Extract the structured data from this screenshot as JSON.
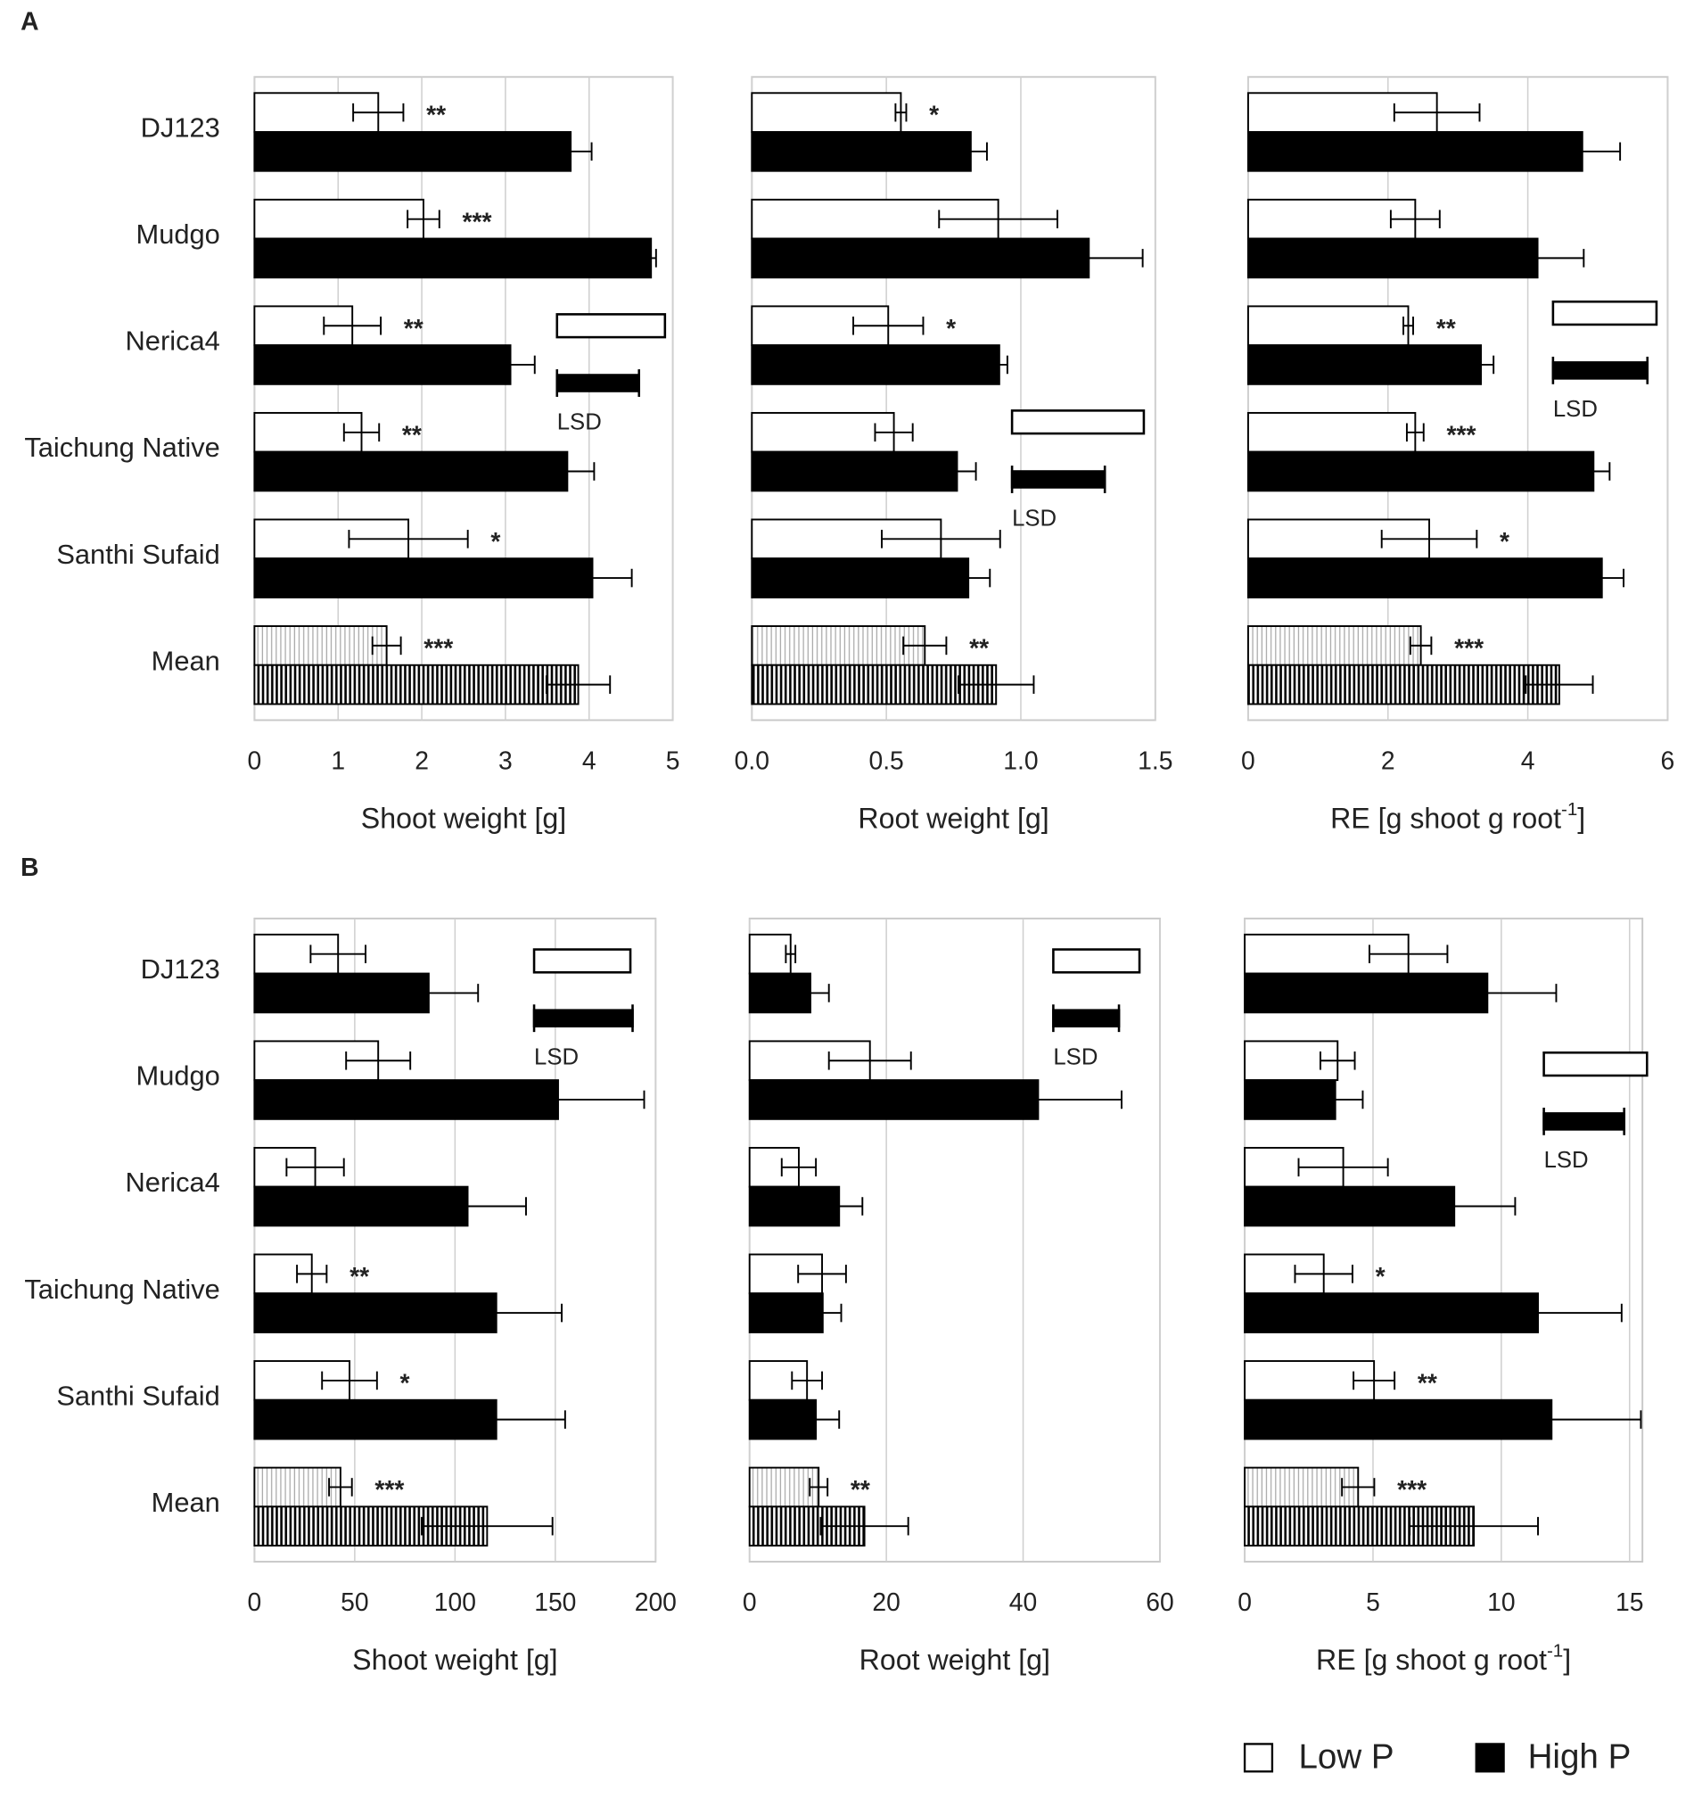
{
  "panel_labels": [
    "A",
    "B"
  ],
  "legend": [
    {
      "name": "Low P",
      "color": "#ffffff"
    },
    {
      "name": "High P",
      "color": "#000000"
    }
  ],
  "chart_data": [
    {
      "type": "bar",
      "orientation": "horizontal",
      "categories": [
        "DJ123",
        "Mudgo",
        "Nerica4",
        "Taichung Native",
        "Santhi Sufaid",
        "Mean"
      ],
      "x_label": {
        "text": "Shoot weight  [g]"
      },
      "xlim": [
        0,
        5
      ],
      "xticks": [
        0,
        1,
        2,
        3,
        4,
        5
      ],
      "grid": true,
      "series": [
        {
          "color": "#ffffff",
          "values": [
            1.48,
            2.02,
            1.17,
            1.28,
            1.84,
            1.58
          ],
          "errors": [
            0.3,
            0.19,
            0.34,
            0.21,
            0.71,
            0.17
          ],
          "annotations": [
            "**",
            "***",
            "**",
            "**",
            "*",
            "***"
          ]
        },
        {
          "color": "#000000",
          "values": [
            3.78,
            4.74,
            3.06,
            3.74,
            4.04,
            3.87
          ],
          "errors": [
            0.25,
            0.06,
            0.29,
            0.32,
            0.47,
            0.38
          ]
        }
      ],
      "lsd": {
        "label": "LSD",
        "values": [
          1.29,
          0.98
        ]
      }
    },
    {
      "type": "bar",
      "orientation": "horizontal",
      "x_label": {
        "text": "Root weight  [g]"
      },
      "xlim": [
        0,
        1.5
      ],
      "xticks": [
        {
          "value": 0,
          "label": "0.0"
        },
        0.5,
        {
          "value": 1,
          "label": "1.0"
        },
        1.5
      ],
      "grid": true,
      "series": [
        {
          "color": "#ffffff",
          "values": [
            0.554,
            0.916,
            0.507,
            0.528,
            0.703,
            0.643
          ],
          "errors": [
            0.02,
            0.22,
            0.13,
            0.07,
            0.22,
            0.08
          ],
          "annotations": [
            "*",
            null,
            "*",
            null,
            null,
            "**"
          ]
        },
        {
          "color": "#000000",
          "values": [
            0.814,
            1.253,
            0.92,
            0.763,
            0.805,
            0.908
          ],
          "errors": [
            0.06,
            0.2,
            0.03,
            0.07,
            0.08,
            0.14
          ]
        }
      ],
      "lsd": {
        "label": "LSD",
        "values": [
          0.49,
          0.345
        ]
      }
    },
    {
      "type": "bar",
      "orientation": "horizontal",
      "x_label": {
        "text": "RE [g shoot g root",
        "sup": "-1",
        "tail": "]"
      },
      "xlim": [
        0,
        6
      ],
      "xticks": [
        0,
        2,
        4,
        6
      ],
      "grid": true,
      "series": [
        {
          "color": "#ffffff",
          "values": [
            2.7,
            2.39,
            2.29,
            2.39,
            2.59,
            2.47
          ],
          "errors": [
            0.61,
            0.35,
            0.07,
            0.12,
            0.68,
            0.15
          ],
          "annotations": [
            null,
            null,
            "**",
            "***",
            "*",
            "***"
          ]
        },
        {
          "color": "#000000",
          "values": [
            4.78,
            4.14,
            3.33,
            4.94,
            5.06,
            4.45
          ],
          "errors": [
            0.54,
            0.66,
            0.18,
            0.23,
            0.31,
            0.48
          ]
        }
      ],
      "lsd": {
        "label": "LSD",
        "values": [
          1.48,
          1.35
        ]
      }
    },
    {
      "type": "bar",
      "orientation": "horizontal",
      "categories": [
        "DJ123",
        "Mudgo",
        "Nerica4",
        "Taichung Native",
        "Santhi Sufaid",
        "Mean"
      ],
      "x_label": {
        "text": "Shoot weight  [g]"
      },
      "xlim": [
        0,
        200
      ],
      "xticks": [
        0,
        50,
        100,
        150,
        200
      ],
      "grid": true,
      "series": [
        {
          "color": "#ffffff",
          "values": [
            41.7,
            61.7,
            30.3,
            28.6,
            47.4,
            42.9
          ],
          "errors": [
            13.7,
            16,
            14.3,
            7.4,
            13.7,
            5.7
          ],
          "annotations": [
            null,
            null,
            null,
            "**",
            "*",
            "***"
          ]
        },
        {
          "color": "#000000",
          "values": [
            86.9,
            151.4,
            106.3,
            120.6,
            120.6,
            116
          ],
          "errors": [
            24.6,
            42.9,
            29.1,
            32.6,
            34.3,
            32.6
          ]
        }
      ],
      "lsd": {
        "label": "LSD",
        "values": [
          48,
          49.1
        ]
      }
    },
    {
      "type": "bar",
      "orientation": "horizontal",
      "x_label": {
        "text": "Root weight  [g]"
      },
      "xlim": [
        0,
        60
      ],
      "xticks": [
        0,
        20,
        40,
        60
      ],
      "grid": true,
      "series": [
        {
          "color": "#ffffff",
          "values": [
            6.0,
            17.6,
            7.2,
            10.6,
            8.4,
            10.1
          ],
          "errors": [
            0.7,
            6.0,
            2.5,
            3.5,
            2.2,
            1.3
          ],
          "annotations": [
            null,
            null,
            null,
            null,
            null,
            "**"
          ]
        },
        {
          "color": "#000000",
          "values": [
            8.9,
            42.2,
            13.1,
            10.7,
            9.7,
            16.8
          ],
          "errors": [
            2.7,
            12.2,
            3.4,
            2.7,
            3.4,
            6.4
          ]
        }
      ],
      "lsd": {
        "label": "LSD",
        "values": [
          12.6,
          9.6
        ]
      }
    },
    {
      "type": "bar",
      "orientation": "horizontal",
      "x_label": {
        "text": "RE [g shoot g root",
        "sup": "-1",
        "tail": "]"
      },
      "xlim": [
        0,
        15.5
      ],
      "xticks": [
        0,
        5,
        10,
        15
      ],
      "grid": true,
      "series": [
        {
          "color": "#ffffff",
          "values": [
            6.38,
            3.62,
            3.84,
            3.08,
            5.04,
            4.42
          ],
          "errors": [
            1.52,
            0.67,
            1.74,
            1.12,
            0.8,
            0.63
          ],
          "annotations": [
            null,
            null,
            null,
            "*",
            "**",
            "***"
          ]
        },
        {
          "color": "#000000",
          "values": [
            9.46,
            3.53,
            8.17,
            11.43,
            11.96,
            8.93
          ],
          "errors": [
            2.68,
            1.07,
            2.37,
            3.26,
            3.48,
            2.5
          ]
        }
      ],
      "lsd": {
        "label": "LSD",
        "values": [
          4.02,
          3.13
        ]
      }
    }
  ]
}
